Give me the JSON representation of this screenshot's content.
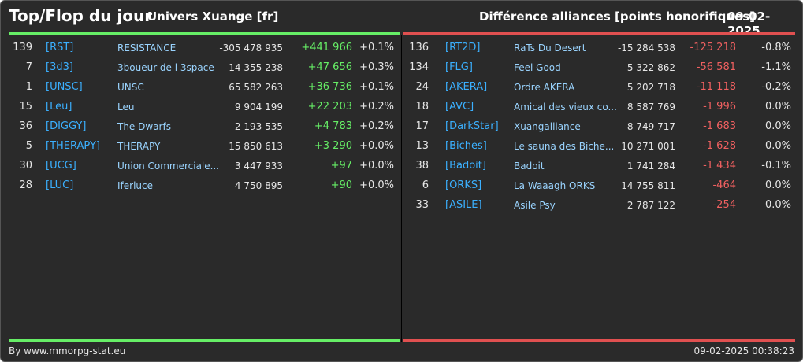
{
  "header": {
    "title": "Top/Flop du jour",
    "universe": "Univers Xuange [fr]",
    "subtitle": "Différence alliances [points honorifiques]",
    "date": "09-02-2025"
  },
  "colors": {
    "top_accent": "#66ee66",
    "flop_accent": "#e05050",
    "background": "#2a2a2a",
    "tag": "#3bb0ff",
    "name": "#9ad4ff"
  },
  "top": [
    {
      "rank": "139",
      "tag": "[RST]",
      "name": "RESISTANCE",
      "points": "-305 478 935",
      "diff": "+441 966",
      "pct": "+0.1%"
    },
    {
      "rank": "7",
      "tag": "[3d3]",
      "name": "3boueur de l 3space",
      "points": "14 355 238",
      "diff": "+47 656",
      "pct": "+0.3%"
    },
    {
      "rank": "1",
      "tag": "[UNSC]",
      "name": "UNSC",
      "points": "65 582 263",
      "diff": "+36 736",
      "pct": "+0.1%"
    },
    {
      "rank": "15",
      "tag": "[Leu]",
      "name": "Leu",
      "points": "9 904 199",
      "diff": "+22 203",
      "pct": "+0.2%"
    },
    {
      "rank": "36",
      "tag": "[DIGGY]",
      "name": "The Dwarfs",
      "points": "2 193 535",
      "diff": "+4 783",
      "pct": "+0.2%"
    },
    {
      "rank": "5",
      "tag": "[THERAPY]",
      "name": "THERAPY",
      "points": "15 850 613",
      "diff": "+3 290",
      "pct": "+0.0%"
    },
    {
      "rank": "30",
      "tag": "[UCG]",
      "name": "Union Commerciale...",
      "points": "3 447 933",
      "diff": "+97",
      "pct": "+0.0%"
    },
    {
      "rank": "28",
      "tag": "[LUC]",
      "name": "Iferluce",
      "points": "4 750 895",
      "diff": "+90",
      "pct": "+0.0%"
    }
  ],
  "flop": [
    {
      "rank": "136",
      "tag": "[RT2D]",
      "name": "RaTs Du Desert",
      "points": "-15 284 538",
      "diff": "-125 218",
      "pct": "-0.8%"
    },
    {
      "rank": "134",
      "tag": "[FLG]",
      "name": "Feel Good",
      "points": "-5 322 862",
      "diff": "-56 581",
      "pct": "-1.1%"
    },
    {
      "rank": "24",
      "tag": "[AKERA]",
      "name": "Ordre AKERA",
      "points": "5 202 718",
      "diff": "-11 118",
      "pct": "-0.2%"
    },
    {
      "rank": "18",
      "tag": "[AVC]",
      "name": "Amical des vieux co...",
      "points": "8 587 769",
      "diff": "-1 996",
      "pct": "0.0%"
    },
    {
      "rank": "17",
      "tag": "[DarkStar]",
      "name": "Xuangalliance",
      "points": "8 749 717",
      "diff": "-1 683",
      "pct": "0.0%"
    },
    {
      "rank": "13",
      "tag": "[Biches]",
      "name": "Le sauna des Biche...",
      "points": "10 271 001",
      "diff": "-1 628",
      "pct": "0.0%"
    },
    {
      "rank": "38",
      "tag": "[Badoit]",
      "name": "Badoit",
      "points": "1 741 284",
      "diff": "-1 434",
      "pct": "-0.1%"
    },
    {
      "rank": "6",
      "tag": "[ORKS]",
      "name": "La Waaagh ORKS",
      "points": "14 755 811",
      "diff": "-464",
      "pct": "0.0%"
    },
    {
      "rank": "33",
      "tag": "[ASILE]",
      "name": "Asile Psy",
      "points": "2 787 122",
      "diff": "-254",
      "pct": "0.0%"
    }
  ],
  "footer": {
    "source": "By www.mmorpg-stat.eu",
    "timestamp": "09-02-2025 00:38:23"
  }
}
